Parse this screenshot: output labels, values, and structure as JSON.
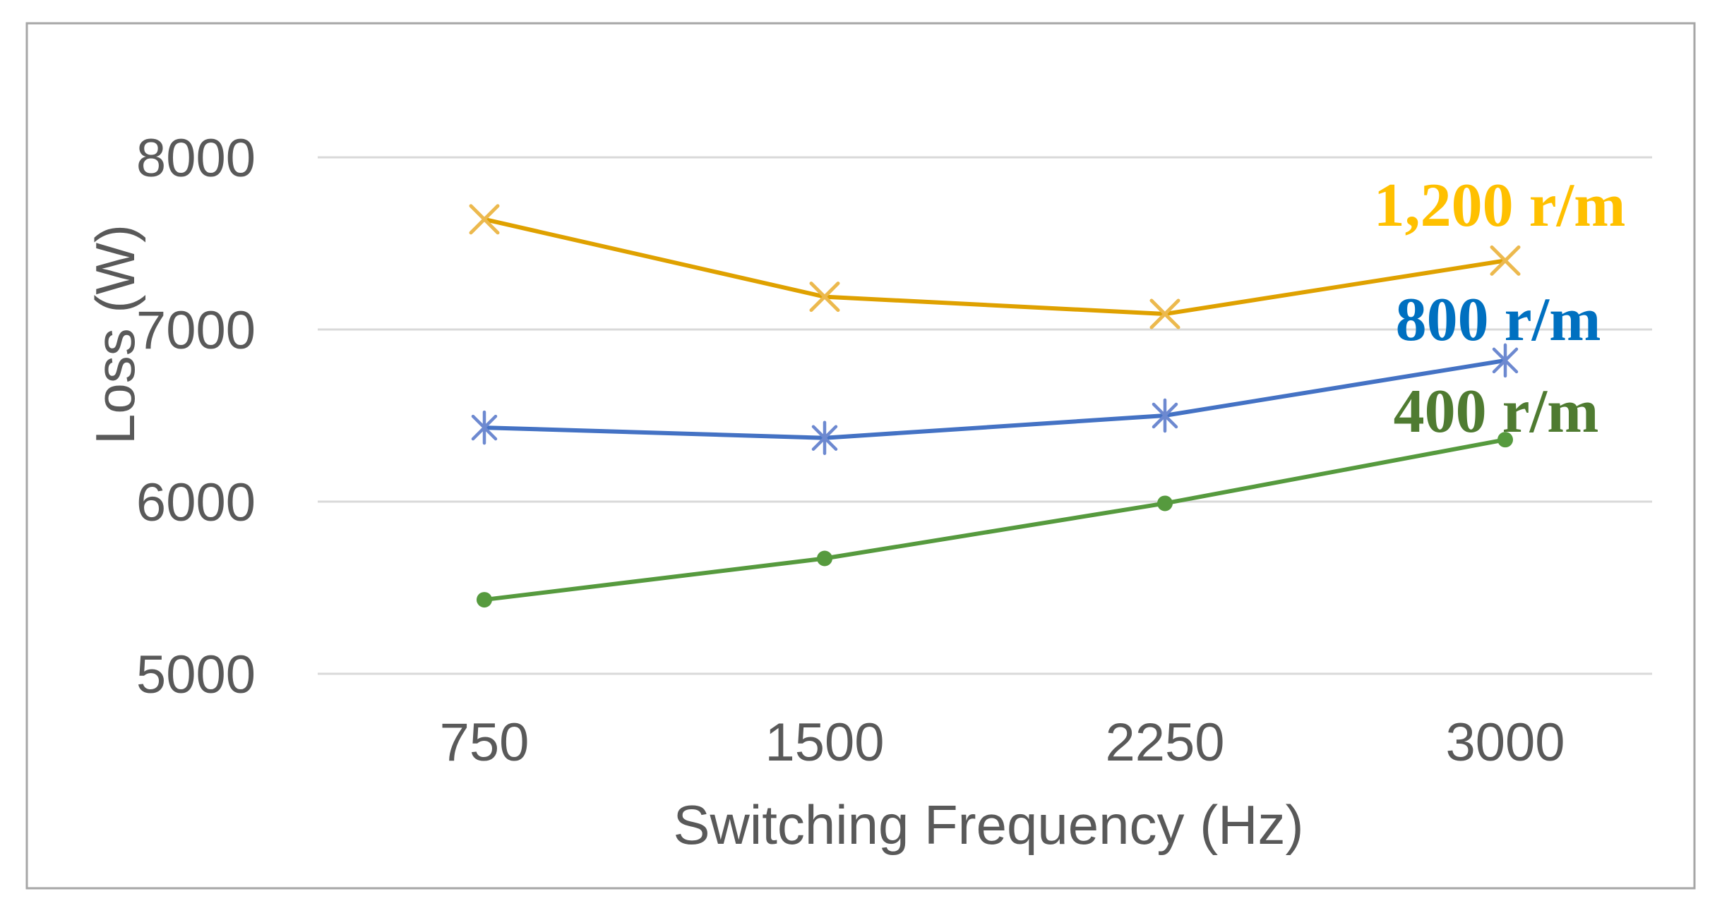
{
  "figure": {
    "background": "#ffffff",
    "border_color": "#a6a6a6"
  },
  "chart_data": {
    "type": "line",
    "title": "",
    "xlabel": "Switching Frequency (Hz)",
    "ylabel": "Loss (W)",
    "x": [
      750,
      1500,
      2250,
      3000
    ],
    "xticks": [
      "750",
      "1500",
      "2250",
      "3000"
    ],
    "yticks": [
      5000,
      6000,
      7000,
      8000
    ],
    "ytick_labels": [
      "5000",
      "6000",
      "7000",
      "8000"
    ],
    "ylim": [
      5000,
      8000
    ],
    "grid": "horizontal-only",
    "gridline_color": "#d9d9d9",
    "axis_text_color": "#595959",
    "legend_position": "inline-right-of-plot",
    "series": [
      {
        "name": "1,200 r/m",
        "values": [
          7640,
          7190,
          7090,
          7400
        ],
        "line_color": "#dfa100",
        "label_color": "#ffc000",
        "marker": "x",
        "marker_color": "#ecb94e"
      },
      {
        "name": "800 r/m",
        "values": [
          6430,
          6370,
          6500,
          6820
        ],
        "line_color": "#4472c4",
        "label_color": "#0070c0",
        "marker": "asterisk",
        "marker_color": "#6d89d0"
      },
      {
        "name": "400 r/m",
        "values": [
          5430,
          5670,
          5990,
          6360
        ],
        "line_color": "#569a3e",
        "label_color": "#4f7b31",
        "marker": "circle",
        "marker_color": "#569a3e"
      }
    ]
  }
}
